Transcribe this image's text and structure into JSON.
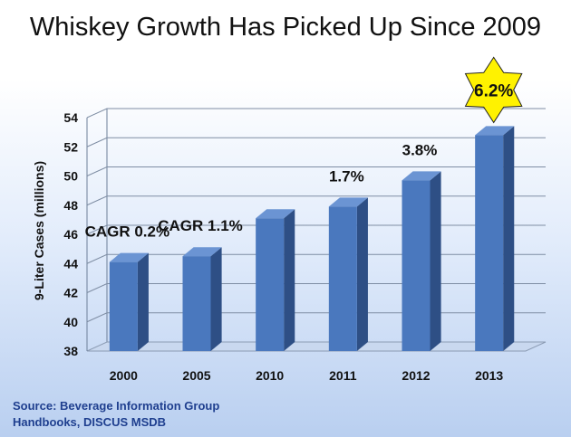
{
  "title": "Whiskey Growth Has Picked Up Since 2009",
  "source": {
    "line1": "Source: Beverage Information Group",
    "line2": "Handbooks, DISCUS MSDB"
  },
  "colors": {
    "bar_front": "#4a78be",
    "bar_side": "#2e4f85",
    "bar_top": "#6b94d3",
    "floor": "#c9d8ef",
    "star": "#fff200",
    "source_text": "#1f3f8f"
  },
  "chart_data": {
    "type": "bar",
    "title": "Whiskey Growth Has Picked Up Since 2009",
    "xlabel": "",
    "ylabel": "9-Liter Cases (millions)",
    "ylim": [
      38,
      54
    ],
    "yticks": [
      38,
      40,
      42,
      44,
      46,
      48,
      50,
      52,
      54
    ],
    "grid": true,
    "categories": [
      "2000",
      "2005",
      "2010",
      "2011",
      "2012",
      "2013"
    ],
    "values": [
      44.1,
      44.5,
      47.1,
      47.9,
      49.7,
      52.8
    ],
    "annotations": [
      {
        "category": "2000",
        "text": "CAGR 0.2%"
      },
      {
        "category": "2005",
        "text": "CAGR 1.1%"
      },
      {
        "category": "2011",
        "text": "1.7%"
      },
      {
        "category": "2012",
        "text": "3.8%"
      },
      {
        "category": "2013",
        "text": "6.2%",
        "highlight": "star"
      }
    ]
  }
}
